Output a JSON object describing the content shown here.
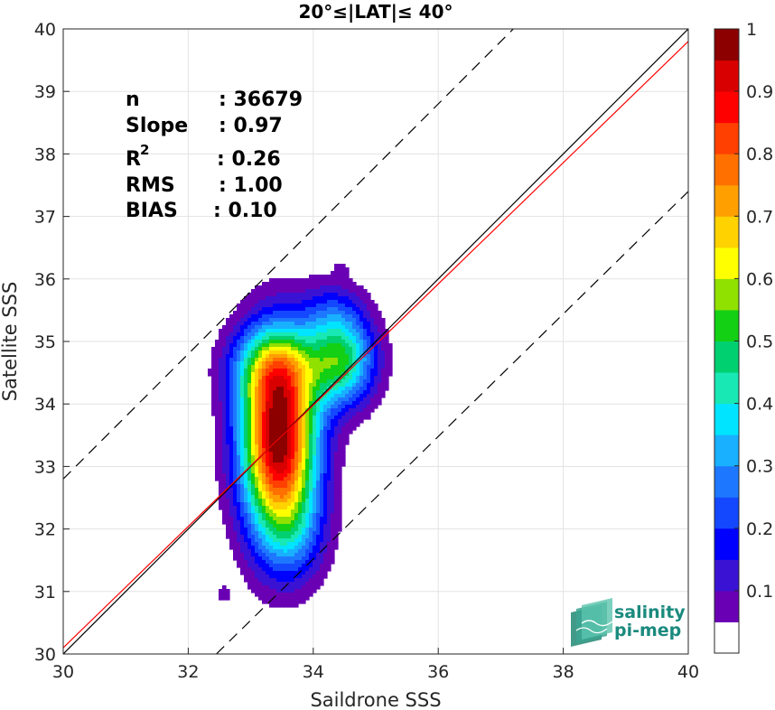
{
  "chart_data": {
    "type": "heatmap",
    "title": "20°≤|LAT|≤ 40°",
    "xlabel": "Saildrone SSS",
    "ylabel": "Satellite SSS",
    "xlim": [
      30,
      40
    ],
    "ylim": [
      30,
      40
    ],
    "xticks": [
      "30",
      "32",
      "34",
      "36",
      "38",
      "40"
    ],
    "yticks": [
      "30",
      "31",
      "32",
      "33",
      "34",
      "35",
      "36",
      "37",
      "38",
      "39",
      "40"
    ],
    "grid": true,
    "stats": [
      {
        "label": "n",
        "value": ": 36679"
      },
      {
        "label": "Slope",
        "value": ": 0.97"
      },
      {
        "label": "R",
        "sup": "2",
        "value": ": 0.26"
      },
      {
        "label": "RMS",
        "value": ": 1.00"
      },
      {
        "label": "BIAS",
        "value": ": 0.10"
      }
    ],
    "lines": [
      {
        "name": "one-to-one",
        "color": "#000000",
        "x": [
          30,
          40
        ],
        "y": [
          30,
          40
        ]
      },
      {
        "name": "regression",
        "color": "#ff0000",
        "x": [
          30,
          40
        ],
        "y": [
          30.1,
          39.8
        ]
      },
      {
        "name": "upper-bound",
        "color": "#000000",
        "dashed": true,
        "x": [
          30,
          37.2
        ],
        "y": [
          32.8,
          40
        ]
      },
      {
        "name": "lower-bound",
        "color": "#000000",
        "dashed": true,
        "x": [
          32.45,
          40
        ],
        "y": [
          30,
          37.4
        ]
      }
    ],
    "density_peaks": [
      {
        "x": 33.45,
        "y": 33.42,
        "sx": 0.42,
        "sy": 1.05,
        "amp": 1.0
      },
      {
        "x": 34.45,
        "y": 34.7,
        "sx": 0.38,
        "sy": 0.5,
        "amp": 0.48
      },
      {
        "x": 33.35,
        "y": 34.6,
        "sx": 0.48,
        "sy": 0.45,
        "amp": 0.3
      },
      {
        "x": 33.7,
        "y": 31.9,
        "sx": 0.38,
        "sy": 0.55,
        "amp": 0.14
      },
      {
        "x": 34.3,
        "y": 35.5,
        "sx": 0.35,
        "sy": 0.35,
        "amp": 0.12
      },
      {
        "x": 34.45,
        "y": 36.15,
        "sx": 0.08,
        "sy": 0.1,
        "amp": 0.07
      },
      {
        "x": 32.55,
        "y": 30.95,
        "sx": 0.1,
        "sy": 0.12,
        "amp": 0.07
      }
    ],
    "colorbar": {
      "levels": [
        0.05,
        0.1,
        0.15,
        0.2,
        0.25,
        0.3,
        0.35,
        0.4,
        0.45,
        0.5,
        0.55,
        0.6,
        0.65,
        0.7,
        0.75,
        0.8,
        0.85,
        0.9,
        0.95,
        1
      ],
      "colors": [
        "#ffffff",
        "#6a00b4",
        "#3a12d4",
        "#0000ff",
        "#1448ff",
        "#1e78ff",
        "#18b0ff",
        "#00e4ff",
        "#18e8b4",
        "#00d070",
        "#14d014",
        "#90e000",
        "#ffff00",
        "#ffd200",
        "#ffa000",
        "#ff7000",
        "#ff4000",
        "#ff0000",
        "#d80000",
        "#8c0000"
      ],
      "ticks": [
        "0.1",
        "0.2",
        "0.3",
        "0.4",
        "0.5",
        "0.6",
        "0.7",
        "0.8",
        "0.9",
        "1"
      ]
    }
  },
  "logo": {
    "line1": "salinity",
    "line2": "pi-mep"
  }
}
